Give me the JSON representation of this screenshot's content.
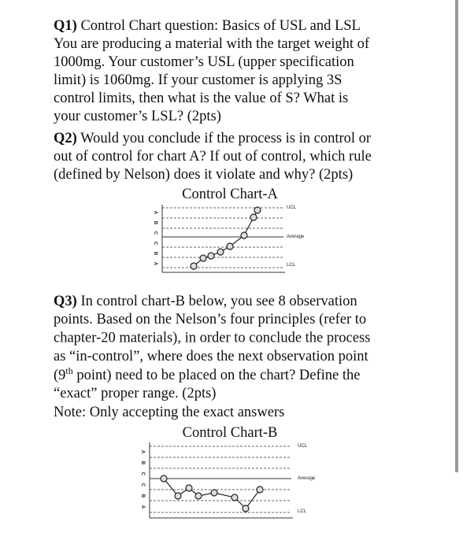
{
  "q1": {
    "label": "Q1)",
    "lines": [
      "Control Chart question: Basics of USL and LSL",
      "You are producing a material with the target weight of",
      "1000mg. Your customer’s USL (upper specification",
      "limit) is 1060mg. If your customer is applying 3S",
      "control limits, then what is the value of S? What is",
      "your customer’s LSL? (2pts)"
    ]
  },
  "q2": {
    "label": "Q2)",
    "lines": [
      "Would you conclude if the process is in control or",
      "out of control for chart A? If out of control, which rule",
      "(defined by Nelson) does it violate and why? (2pts)"
    ]
  },
  "chart_a": {
    "title": "Control Chart-A",
    "zones": [
      "A",
      "B",
      "C",
      "C",
      "B",
      "A"
    ],
    "ucl": "UCL",
    "average": "Average",
    "lcl": "LCL"
  },
  "q3": {
    "label": "Q3)",
    "lines": [
      "In control chart-B below, you see 8 observation",
      "points. Based on the Nelson’s four principles (refer to",
      "chapter-20 materials), in order to conclude the process",
      "as “in-control”, where does the next observation point"
    ],
    "line5": [
      "(9",
      "th",
      " point) need to be placed on the chart? Define the"
    ],
    "line6": "“exact” proper range. (2pts)",
    "note": "Note: Only accepting the exact answers"
  },
  "chart_b": {
    "title": "Control Chart-B",
    "zones": [
      "A",
      "B",
      "C",
      "C",
      "B",
      "A"
    ],
    "ucl": "UCL",
    "average": "Average",
    "lcl": "LCL"
  }
}
